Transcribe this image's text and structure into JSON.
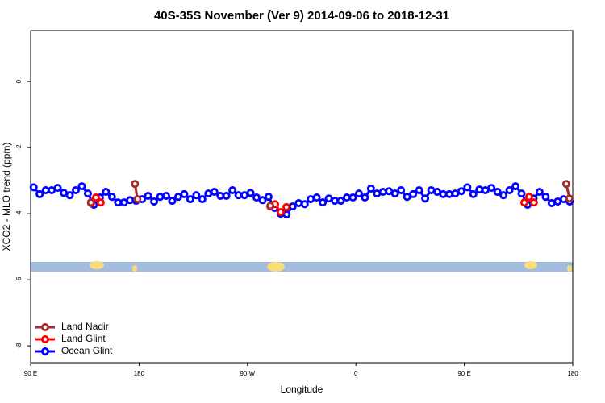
{
  "chart_data": {
    "type": "line",
    "title": "40S-35S November (Ver 9)   2014-09-06 to 2018-12-31",
    "x_label": "Longitude",
    "y_label": "XCO2 - MLO trend (ppm)",
    "xlim": [
      90,
      540
    ],
    "xticks": [
      {
        "value": 90,
        "label": "90 E"
      },
      {
        "value": 180,
        "label": "180"
      },
      {
        "value": 270,
        "label": "90 W"
      },
      {
        "value": 360,
        "label": "0"
      },
      {
        "value": 450,
        "label": "90 E"
      },
      {
        "value": 540,
        "label": "180"
      }
    ],
    "ylim": [
      -8.51,
      1.54
    ],
    "yticks": [
      0,
      -2,
      -4,
      -6,
      -8
    ],
    "grid": false,
    "legend": "bottom-left",
    "series": [
      {
        "name": "Land Nadir",
        "color": "#a52a2a",
        "x": [
          140,
          null,
          176.6,
          178.6,
          null,
          289,
          null,
          534.6,
          537.3
        ],
        "values": [
          -3.66,
          null,
          -3.1,
          -3.56,
          null,
          -3.76,
          null,
          -3.1,
          -3.54
        ]
      },
      {
        "name": "Land Glint",
        "color": "#ff0000",
        "x": [
          140.2,
          144.2,
          148.2,
          null,
          288.9,
          292.9,
          297.6,
          302.3,
          null,
          499.8,
          503.8,
          507.8
        ],
        "values": [
          -3.68,
          -3.51,
          -3.66,
          null,
          -3.78,
          -3.71,
          -3.95,
          -3.8,
          null,
          -3.66,
          -3.49,
          -3.66
        ]
      },
      {
        "name": "Ocean Glint",
        "color": "#0000ff",
        "x": [
          92.5,
          97.5,
          102.5,
          107.5,
          112.5,
          117.5,
          122.5,
          127.5,
          132.5,
          137.5,
          142.5,
          147.5,
          152.5,
          157.5,
          162.5,
          167.5,
          172.5,
          177.5,
          182.5,
          187.5,
          192.5,
          197.5,
          202.5,
          207.5,
          212.5,
          217.5,
          222.5,
          227.5,
          232.5,
          237.5,
          242.5,
          247.5,
          252.5,
          257.5,
          262.5,
          267.5,
          272.5,
          277.5,
          282.5,
          287.5,
          292.5,
          297.5,
          302.5,
          307.5,
          312.5,
          317.5,
          322.5,
          327.5,
          332.5,
          337.5,
          342.5,
          347.5,
          352.5,
          357.5,
          362.5,
          367.5,
          372.5,
          377.5,
          382.5,
          387.5,
          392.5,
          397.5,
          402.5,
          407.5,
          412.5,
          417.5,
          422.5,
          427.5,
          432.5,
          437.5,
          442.5,
          447.5,
          452.5,
          457.5,
          462.5,
          467.5,
          472.5,
          477.5,
          482.5,
          487.5,
          492.5,
          497.5,
          502.5,
          507.5,
          512.5,
          517.5,
          522.5,
          527.5,
          532.5,
          537.5
        ],
        "values": [
          -3.2,
          -3.41,
          -3.29,
          -3.29,
          -3.22,
          -3.37,
          -3.44,
          -3.29,
          -3.17,
          -3.39,
          -3.73,
          -3.51,
          -3.34,
          -3.49,
          -3.66,
          -3.66,
          -3.59,
          -3.61,
          -3.56,
          -3.46,
          -3.63,
          -3.49,
          -3.46,
          -3.61,
          -3.49,
          -3.41,
          -3.56,
          -3.44,
          -3.56,
          -3.39,
          -3.34,
          -3.46,
          -3.46,
          -3.29,
          -3.44,
          -3.44,
          -3.37,
          -3.51,
          -3.59,
          -3.49,
          -3.83,
          -4.0,
          -4.02,
          -3.78,
          -3.68,
          -3.71,
          -3.56,
          -3.51,
          -3.66,
          -3.54,
          -3.61,
          -3.61,
          -3.51,
          -3.51,
          -3.39,
          -3.51,
          -3.24,
          -3.39,
          -3.34,
          -3.32,
          -3.39,
          -3.29,
          -3.49,
          -3.41,
          -3.29,
          -3.54,
          -3.29,
          -3.34,
          -3.41,
          -3.41,
          -3.39,
          -3.32,
          -3.2,
          -3.41,
          -3.27,
          -3.29,
          -3.22,
          -3.34,
          -3.44,
          -3.29,
          -3.17,
          -3.39,
          -3.73,
          -3.54,
          -3.34,
          -3.49,
          -3.68,
          -3.63,
          -3.56,
          -3.63
        ]
      }
    ]
  }
}
